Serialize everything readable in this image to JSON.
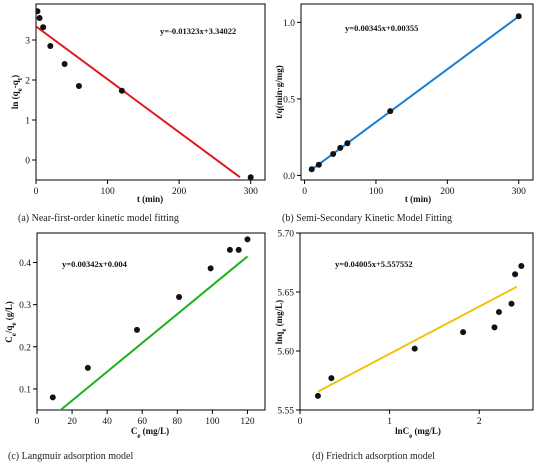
{
  "chart_data": [
    {
      "type": "scatter",
      "caption": "(a) Near-first-order kinetic model fitting",
      "equation": "y=-0.01323x+3.34022",
      "xlabel": "t (min)",
      "ylabel": "ln (qe-qt)",
      "xlim": [
        0,
        320
      ],
      "ylim": [
        -0.5,
        3.9
      ],
      "xticks": [
        "0",
        "100",
        "200",
        "300"
      ],
      "xtick_values": [
        0,
        100,
        200,
        300
      ],
      "yticks": [
        "0",
        "1",
        "2",
        "3"
      ],
      "ytick_values": [
        0,
        1,
        2,
        3
      ],
      "line_color": "#e11b1b",
      "fit": {
        "slope": -0.01323,
        "intercept": 3.34022,
        "x_range": [
          0,
          285
        ]
      },
      "points": [
        [
          2,
          3.72
        ],
        [
          5,
          3.55
        ],
        [
          10,
          3.32
        ],
        [
          20,
          2.85
        ],
        [
          40,
          2.4
        ],
        [
          60,
          1.85
        ],
        [
          120,
          1.73
        ],
        [
          300,
          -0.43
        ]
      ]
    },
    {
      "type": "scatter",
      "caption": "(b) Semi-Secondary Kinetic Model Fitting",
      "equation": "y=0.00345x+0.00355",
      "xlabel": "t (min)",
      "ylabel": "t/q(min·g/mg)",
      "xlim": [
        -5,
        320
      ],
      "ylim": [
        -0.03,
        1.12
      ],
      "xticks": [
        "0",
        "100",
        "200",
        "300"
      ],
      "xtick_values": [
        0,
        100,
        200,
        300
      ],
      "yticks": [
        "0.0",
        "0.5",
        "1.0"
      ],
      "ytick_values": [
        0,
        0.5,
        1.0
      ],
      "line_color": "#1b7fd1",
      "fit": {
        "slope": 0.00345,
        "intercept": 0.00355,
        "x_range": [
          10,
          300
        ]
      },
      "points": [
        [
          10,
          0.04
        ],
        [
          20,
          0.07
        ],
        [
          40,
          0.14
        ],
        [
          50,
          0.18
        ],
        [
          60,
          0.21
        ],
        [
          120,
          0.42
        ],
        [
          300,
          1.04
        ]
      ]
    },
    {
      "type": "scatter",
      "caption": "(c) Langmuir adsorption model",
      "equation": "y=0.00342x+0.004",
      "xlabel": "Ce (mg/L)",
      "ylabel": "Ce/qe (g/L)",
      "xlim": [
        0,
        130
      ],
      "ylim": [
        0.05,
        0.47
      ],
      "xticks": [
        "0",
        "20",
        "40",
        "60",
        "80",
        "100",
        "120"
      ],
      "xtick_values": [
        0,
        20,
        40,
        60,
        80,
        100,
        120
      ],
      "yticks": [
        "0.1",
        "0.2",
        "0.3",
        "0.4"
      ],
      "ytick_values": [
        0.1,
        0.2,
        0.3,
        0.4
      ],
      "line_color": "#1db31d",
      "fit": {
        "slope": 0.00342,
        "intercept": 0.004,
        "x_range": [
          9,
          120
        ]
      },
      "points": [
        [
          9,
          0.08
        ],
        [
          29,
          0.15
        ],
        [
          57,
          0.24
        ],
        [
          81,
          0.318
        ],
        [
          99,
          0.386
        ],
        [
          110,
          0.43
        ],
        [
          115,
          0.43
        ],
        [
          120,
          0.455
        ]
      ]
    },
    {
      "type": "scatter",
      "caption": "(d) Friedrich adsorption model",
      "equation": "y=0.04005x+5.557552",
      "xlabel": "lnCe (mg/L)",
      "ylabel": "lnqe (mg/L)",
      "xlim": [
        0,
        2.6
      ],
      "ylim": [
        5.55,
        5.7
      ],
      "xticks": [
        "0",
        "1",
        "2"
      ],
      "xtick_values": [
        0,
        1,
        2
      ],
      "yticks": [
        "5.55",
        "5.60",
        "5.65",
        "5.70"
      ],
      "ytick_values": [
        5.55,
        5.6,
        5.65,
        5.7
      ],
      "line_color": "#f2c20f",
      "fit": {
        "slope": 0.04005,
        "intercept": 5.557552,
        "x_range": [
          0.2,
          2.42
        ]
      },
      "points": [
        [
          0.2,
          5.562
        ],
        [
          0.35,
          5.577
        ],
        [
          1.28,
          5.602
        ],
        [
          1.82,
          5.616
        ],
        [
          2.17,
          5.62
        ],
        [
          2.22,
          5.633
        ],
        [
          2.36,
          5.64
        ],
        [
          2.4,
          5.665
        ],
        [
          2.47,
          5.672
        ]
      ]
    }
  ]
}
